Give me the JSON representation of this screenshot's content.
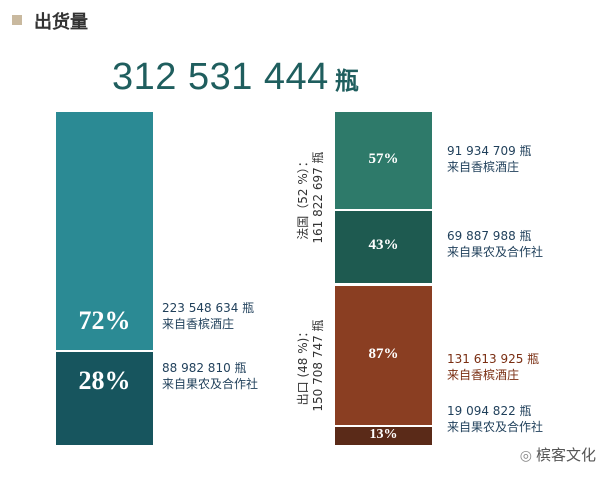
{
  "header": {
    "title": "出货量"
  },
  "total": {
    "value": "312 531 444",
    "unit": "瓶"
  },
  "colors": {
    "teal_light": "#2b8a94",
    "teal_dark": "#17555e",
    "green_light": "#2e7a6a",
    "green_dark": "#1e5a50",
    "brown_light": "#8a3e22",
    "brown_dark": "#5a2a18"
  },
  "chart_data": [
    {
      "type": "bar",
      "categories": [
        "来自香槟酒庄",
        "来自果农及合作社"
      ],
      "values": [
        223548634,
        88982810
      ],
      "percents": [
        "72%",
        "28%"
      ],
      "labels": [
        {
          "value": "223 548 634 瓶",
          "desc": "来自香槟酒庄"
        },
        {
          "value": "88 982 810 瓶",
          "desc": "来自果农及合作社"
        }
      ]
    },
    {
      "type": "bar",
      "groups": [
        {
          "name": "法国（52 %）：",
          "total": "161 822 697 瓶",
          "categories": [
            "来自香槟酒庄",
            "来自果农及合作社"
          ],
          "values": [
            91934709,
            69887988
          ],
          "percents": [
            "57%",
            "43%"
          ],
          "labels": [
            {
              "value": "91 934 709 瓶",
              "desc": "来自香槟酒庄"
            },
            {
              "value": "69 887 988 瓶",
              "desc": "来自果农及合作社"
            }
          ]
        },
        {
          "name": "出口 (48 %)：",
          "total": "150 708 747 瓶",
          "categories": [
            "来自香槟酒庄",
            "来自果农及合作社"
          ],
          "values": [
            131613925,
            19094822
          ],
          "percents": [
            "87%",
            "13%"
          ],
          "labels": [
            {
              "value": "131 613 925 瓶",
              "desc": "来自香槟酒庄"
            },
            {
              "value": "19 094 822 瓶",
              "desc": "来自果农及合作社"
            }
          ]
        }
      ]
    }
  ],
  "watermark": {
    "text": "槟客文化"
  }
}
